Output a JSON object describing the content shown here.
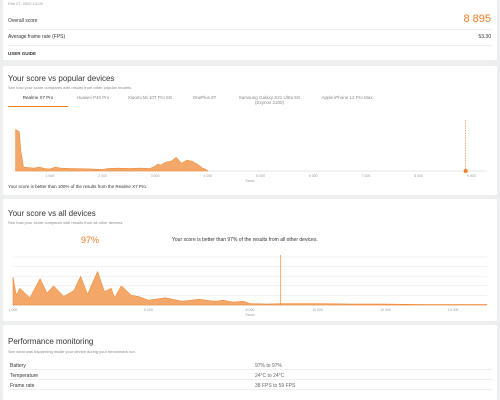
{
  "top": {
    "timestamp": "Feb 27, 2022 13:09",
    "overall_label": "Overall score",
    "overall_value": "8 895",
    "fps_label": "Average frame rate (FPS)",
    "fps_value": "53.30",
    "guide_label": "USER GUIDE"
  },
  "popular": {
    "title": "Your score vs popular devices",
    "subtitle": "See how your score compares with results from other popular models.",
    "tabs": [
      {
        "label": "Realme X7 Pro"
      },
      {
        "label": "Huawei P40 Pro"
      },
      {
        "label": "Xiaomi Mi 10T Pro 5G"
      },
      {
        "label": "OnePlus 8T"
      },
      {
        "label": "Samsung Galaxy S21 Ultra 5G (Exynos 2100)"
      },
      {
        "label": "Apple iPhone 12 Pro Max"
      }
    ],
    "xlabel": "Score",
    "footer": "Your score is better than 100% of the results from the Realme X7 Pro."
  },
  "all": {
    "title": "Your score vs all devices",
    "subtitle": "See how your score compares with results from all other devices.",
    "percent": "97%",
    "summary": "Your score is better than 97% of the results from all other devices.",
    "xlabel": "Score"
  },
  "perf": {
    "title": "Performance monitoring",
    "subtitle": "See what was happening inside your device during your benchmark run.",
    "rows": [
      {
        "label": "Battery",
        "value": "97% to 97%"
      },
      {
        "label": "Temperature",
        "value": "24°C to 24°C"
      },
      {
        "label": "Frame rate",
        "value": "38 FPS to 59 FPS"
      }
    ]
  },
  "colors": {
    "accent": "#ef7d22",
    "fill": "#f3a86a"
  },
  "chart_data": [
    {
      "type": "area",
      "xlabel": "Score",
      "x_ticks": [
        1000,
        2000,
        3000,
        4000,
        5000,
        6000,
        7000,
        8000,
        9000
      ],
      "tick_labels": [
        "1 000",
        "2 000",
        "3 000",
        "4 000",
        "5 000",
        "6 000",
        "7 000",
        "8 000",
        "9 000"
      ],
      "xlim": [
        300,
        9300
      ],
      "ylim": [
        0,
        100
      ],
      "marker_score": 8895,
      "x": [
        350,
        420,
        450,
        500,
        700,
        800,
        900,
        1000,
        1100,
        1200,
        1400,
        1800,
        2000,
        2100,
        2300,
        2500,
        2700,
        2900,
        3000,
        3050,
        3100,
        3200,
        3300,
        3400,
        3500,
        3600,
        3700,
        3800,
        3900,
        3950,
        4000
      ],
      "values": [
        85,
        80,
        40,
        8,
        6,
        8,
        5,
        4,
        8,
        6,
        5,
        4,
        3,
        5,
        6,
        5,
        6,
        5,
        10,
        14,
        12,
        18,
        20,
        28,
        16,
        22,
        20,
        14,
        6,
        4,
        0
      ]
    },
    {
      "type": "area",
      "xlabel": "Score",
      "x_ticks": [
        1000,
        5000,
        8000,
        10000,
        12000,
        14000
      ],
      "tick_labels": [
        "1 000",
        "5 000",
        "8 000",
        "10 000",
        "12 000",
        "14 000"
      ],
      "xlim": [
        1000,
        15000
      ],
      "ylim": [
        0,
        100
      ],
      "marker_score": 8895,
      "x": [
        1000,
        1100,
        1200,
        1500,
        1800,
        2000,
        2200,
        2500,
        2800,
        3000,
        3200,
        3500,
        3700,
        3900,
        4000,
        4200,
        4500,
        4700,
        5000,
        5500,
        6000,
        6500,
        6800,
        7000,
        7200,
        7500,
        7800,
        8000,
        8500,
        9000,
        10000,
        11000,
        12000,
        13000,
        14000,
        15000
      ],
      "values": [
        58,
        20,
        35,
        15,
        55,
        25,
        40,
        18,
        30,
        60,
        22,
        70,
        28,
        35,
        15,
        40,
        20,
        18,
        10,
        15,
        8,
        12,
        9,
        8,
        10,
        6,
        8,
        3,
        2,
        3,
        3,
        2,
        2,
        1,
        1,
        1
      ]
    }
  ]
}
